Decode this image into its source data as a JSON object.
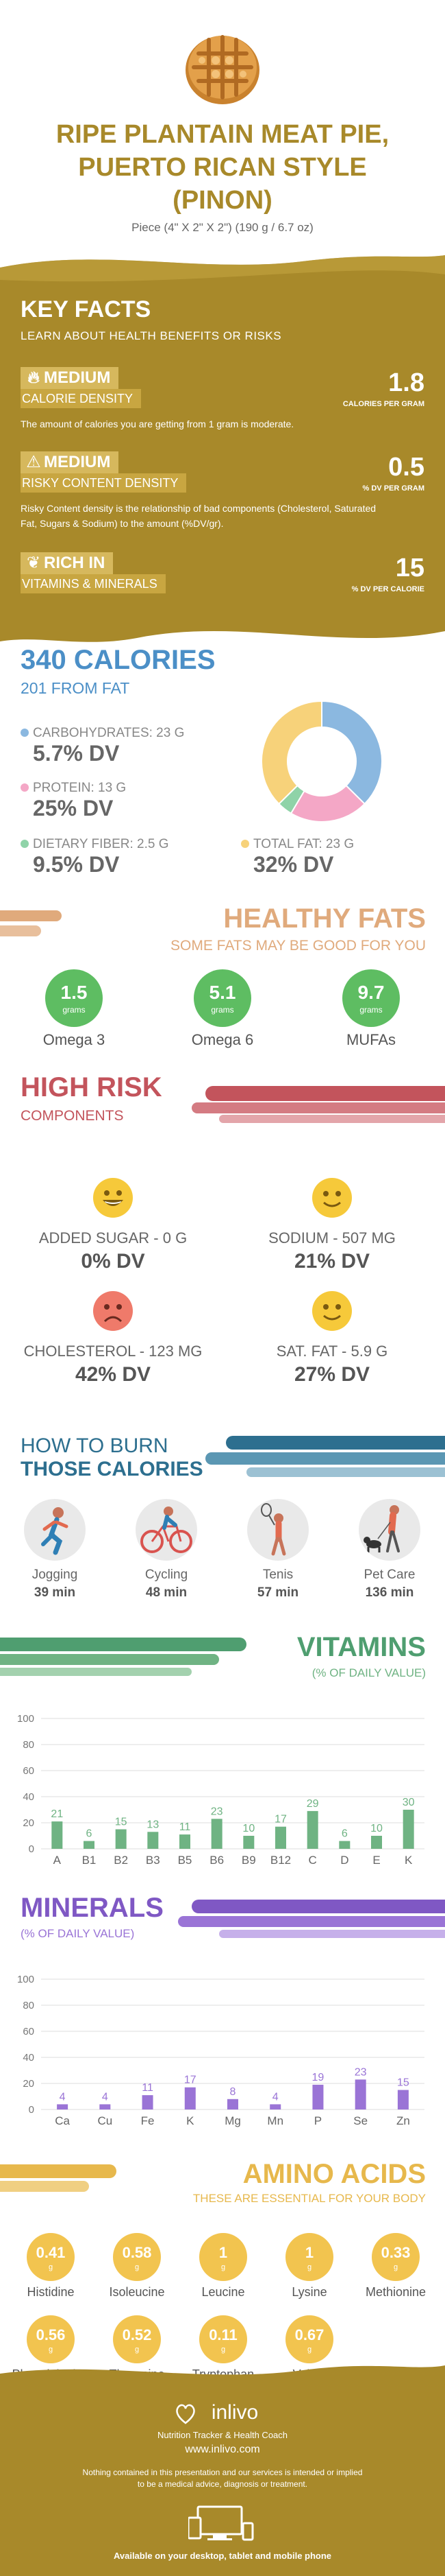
{
  "header": {
    "title": "RIPE PLANTAIN MEAT PIE, PUERTO RICAN STYLE (PINON)",
    "serving": "Piece (4\" X 2\" X 2\") (190 g / 6.7 oz)"
  },
  "key_facts": {
    "title": "KEY FACTS",
    "subtitle": "LEARN ABOUT HEALTH BENEFITS OR RISKS",
    "rows": [
      {
        "icon": "flame-icon",
        "badge": "MEDIUM",
        "label": "CALORIE DENSITY",
        "value": "1.8",
        "unit": "CALORIES PER GRAM",
        "desc": "The amount of calories you are getting from 1 gram is moderate."
      },
      {
        "icon": "warning-icon",
        "badge": "MEDIUM",
        "label": "RISKY CONTENT DENSITY",
        "value": "0.5",
        "unit": "% DV PER GRAM",
        "desc": "Risky Content density is the relationship of bad components (Cholesterol, Saturated Fat, Sugars & Sodium) to the amount (%DV/gr)."
      },
      {
        "icon": "leaf-icon",
        "badge": "RICH  IN",
        "label": "VITAMINS & MINERALS",
        "value": "15",
        "unit": "% DV PER CALORIE",
        "desc": ""
      }
    ]
  },
  "calories": {
    "title": "340 CALORIES",
    "subtitle": "201 FROM FAT",
    "nutrients": [
      {
        "label": "CARBOHYDRATES: 23 g",
        "dv": "5.7% DV",
        "color": "#8bb8e0"
      },
      {
        "label": "PROTEIN: 13 g",
        "dv": "25% DV",
        "color": "#f4a7c6"
      },
      {
        "label": "DIETARY FIBER: 2.5 g",
        "dv": "9.5% DV",
        "color": "#8fd3a8"
      },
      {
        "label": "TOTAL FAT: 23 g",
        "dv": "32% DV",
        "color": "#f7d27a"
      }
    ],
    "donut": [
      {
        "name": "CARBOHYDRATES",
        "value": 23,
        "color": "#8bb8e0"
      },
      {
        "name": "PROTEIN",
        "value": 13,
        "color": "#f4a7c6"
      },
      {
        "name": "DIETARY FIBER",
        "value": 2.5,
        "color": "#8fd3a8"
      },
      {
        "name": "TOTAL FAT",
        "value": 23,
        "color": "#f7d27a"
      }
    ]
  },
  "healthy_fats": {
    "title": "HEALTHY FATS",
    "subtitle": "SOME FATS MAY BE GOOD FOR YOU",
    "items": [
      {
        "value": "1.5",
        "unit": "grams",
        "name": "Omega 3"
      },
      {
        "value": "5.1",
        "unit": "grams",
        "name": "Omega 6"
      },
      {
        "value": "9.7",
        "unit": "grams",
        "name": "MUFAs"
      }
    ]
  },
  "high_risk": {
    "title": "HIGH RISK",
    "subtitle": "COMPONENTS",
    "items": [
      {
        "label": "ADDED SUGAR - 0 g",
        "dv": "0% DV",
        "face": "happy",
        "color": "#f6c93a"
      },
      {
        "label": "SODIUM - 507 mg",
        "dv": "21% DV",
        "face": "smile",
        "color": "#f6c93a"
      },
      {
        "label": "CHOLESTEROL - 123 mg",
        "dv": "42% DV",
        "face": "sad",
        "color": "#ef7a6a"
      },
      {
        "label": "SAT. FAT - 5.9 g",
        "dv": "27% DV",
        "face": "smile",
        "color": "#f6c93a"
      }
    ]
  },
  "burn": {
    "title_line1": "HOW TO BURN",
    "title_line2": "THOSE CALORIES",
    "activities": [
      {
        "name": "Jogging",
        "minutes": "39 min"
      },
      {
        "name": "Cycling",
        "minutes": "48 min"
      },
      {
        "name": "Tenis",
        "minutes": "57 min"
      },
      {
        "name": "Pet Care",
        "minutes": "136 min"
      }
    ]
  },
  "vitamins": {
    "title": "VITAMINS",
    "subtitle": "(% OF DAILY VALUE)",
    "color": "#6fb383"
  },
  "minerals": {
    "title": "MINERALS",
    "subtitle": "(% OF DAILY VALUE)",
    "color": "#9a74d6"
  },
  "chart_data": [
    {
      "type": "bar",
      "title": "VITAMINS",
      "categories": [
        "A",
        "B1",
        "B2",
        "B3",
        "B5",
        "B6",
        "B9",
        "B12",
        "C",
        "D",
        "E",
        "K"
      ],
      "values": [
        21,
        6,
        15,
        13,
        11,
        23,
        10,
        17,
        29,
        6,
        10,
        30
      ],
      "ylim": [
        0,
        100
      ],
      "yticks": [
        0,
        20,
        40,
        60,
        80,
        100
      ],
      "grid": true
    },
    {
      "type": "bar",
      "title": "MINERALS",
      "categories": [
        "Ca",
        "Cu",
        "Fe",
        "K",
        "Mg",
        "Mn",
        "P",
        "Se",
        "Zn"
      ],
      "values": [
        4,
        4,
        11,
        17,
        8,
        4,
        19,
        23,
        15
      ],
      "ylim": [
        0,
        100
      ],
      "yticks": [
        0,
        20,
        40,
        60,
        80,
        100
      ],
      "grid": true
    }
  ],
  "amino_acids": {
    "title": "AMINO ACIDS",
    "subtitle": "THESE ARE ESSENTIAL FOR YOUR BODY",
    "items": [
      {
        "value": "0.41",
        "unit": "g",
        "name": "Histidine"
      },
      {
        "value": "0.58",
        "unit": "g",
        "name": "Isoleucine"
      },
      {
        "value": "1",
        "unit": "g",
        "name": "Leucine"
      },
      {
        "value": "1",
        "unit": "g",
        "name": "Lysine"
      },
      {
        "value": "0.33",
        "unit": "g",
        "name": "Methionine"
      },
      {
        "value": "0.56",
        "unit": "g",
        "name": "Phenylalanine"
      },
      {
        "value": "0.52",
        "unit": "g",
        "name": "Threonine"
      },
      {
        "value": "0.11",
        "unit": "g",
        "name": "Tryptophan"
      },
      {
        "value": "0.67",
        "unit": "g",
        "name": "Valine"
      }
    ]
  },
  "footer": {
    "brand": "inlivo",
    "tagline": "Nutrition Tracker & Health Coach",
    "url": "www.inlivo.com",
    "disclaimer": "Nothing contained in this presentation and our services is intended or implied to be a medical advice, diagnosis or treatment.",
    "available": "Available on your desktop, tablet and mobile phone"
  }
}
